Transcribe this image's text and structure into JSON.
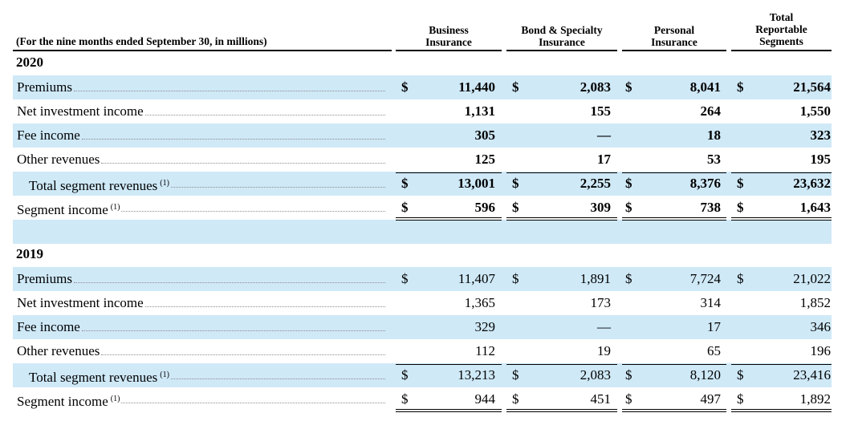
{
  "caption": "(For the nine months ended September 30, in millions)",
  "columns": [
    {
      "lines": [
        "Business",
        "Insurance"
      ]
    },
    {
      "lines": [
        "Bond & Specialty",
        "Insurance"
      ]
    },
    {
      "lines": [
        "Personal",
        "Insurance"
      ]
    },
    {
      "lines": [
        "Total",
        "Reportable",
        "Segments"
      ]
    }
  ],
  "sections": [
    {
      "year": "2020",
      "rows": [
        {
          "label": "Premiums",
          "sup": "",
          "currency": "$",
          "values": [
            "11,440",
            "2,083",
            "8,041",
            "21,564"
          ]
        },
        {
          "label": "Net investment income",
          "sup": "",
          "currency": "",
          "values": [
            "1,131",
            "155",
            "264",
            "1,550"
          ]
        },
        {
          "label": "Fee income",
          "sup": "",
          "currency": "",
          "values": [
            "305",
            "—",
            "18",
            "323"
          ]
        },
        {
          "label": "Other revenues",
          "sup": "",
          "currency": "",
          "values": [
            "125",
            "17",
            "53",
            "195"
          ]
        },
        {
          "label": "Total segment revenues",
          "sup": "(1)",
          "currency": "$",
          "values": [
            "13,001",
            "2,255",
            "8,376",
            "23,632"
          ]
        },
        {
          "label": "Segment income",
          "sup": "(1)",
          "currency": "$",
          "values": [
            "596",
            "309",
            "738",
            "1,643"
          ]
        }
      ]
    },
    {
      "year": "2019",
      "rows": [
        {
          "label": "Premiums",
          "sup": "",
          "currency": "$",
          "values": [
            "11,407",
            "1,891",
            "7,724",
            "21,022"
          ]
        },
        {
          "label": "Net investment income",
          "sup": "",
          "currency": "",
          "values": [
            "1,365",
            "173",
            "314",
            "1,852"
          ]
        },
        {
          "label": "Fee income",
          "sup": "",
          "currency": "",
          "values": [
            "329",
            "—",
            "17",
            "346"
          ]
        },
        {
          "label": "Other revenues",
          "sup": "",
          "currency": "",
          "values": [
            "112",
            "19",
            "65",
            "196"
          ]
        },
        {
          "label": "Total segment revenues",
          "sup": "(1)",
          "currency": "$",
          "values": [
            "13,213",
            "2,083",
            "8,120",
            "23,416"
          ]
        },
        {
          "label": "Segment income",
          "sup": "(1)",
          "currency": "$",
          "values": [
            "944",
            "451",
            "497",
            "1,892"
          ]
        }
      ]
    }
  ]
}
